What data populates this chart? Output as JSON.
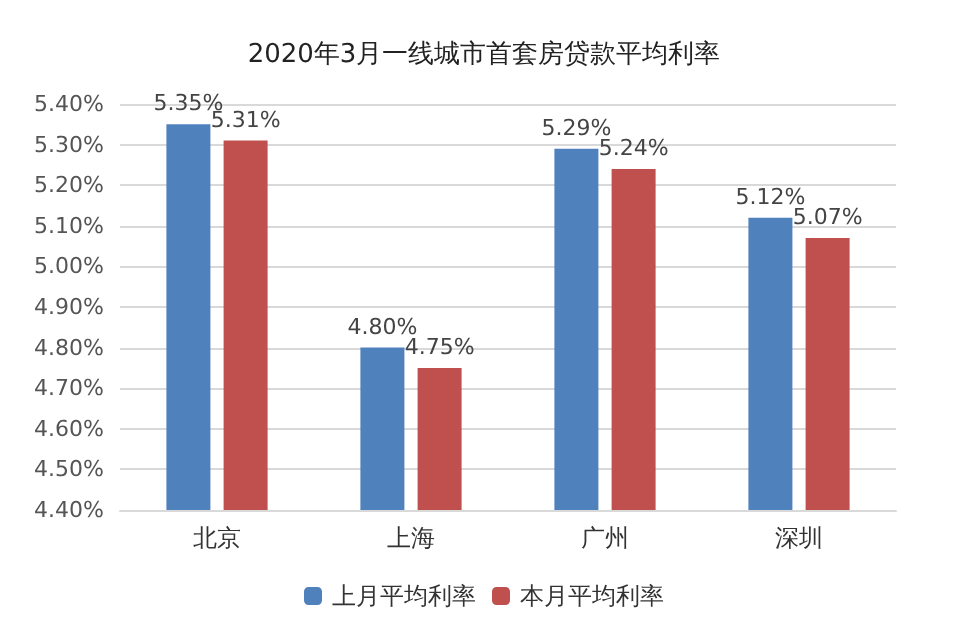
{
  "chart_data": {
    "type": "bar",
    "title": "2020年3月一线城市首套房贷款平均利率",
    "categories": [
      "北京",
      "上海",
      "广州",
      "深圳"
    ],
    "series": [
      {
        "name": "上月平均利率",
        "color": "#4f81bd",
        "values": [
          5.35,
          4.8,
          5.29,
          5.12
        ],
        "value_labels": [
          "5.35%",
          "4.80%",
          "5.29%",
          "5.12%"
        ]
      },
      {
        "name": "本月平均利率",
        "color": "#c0504d",
        "values": [
          5.31,
          4.75,
          5.24,
          5.07
        ],
        "value_labels": [
          "5.31%",
          "4.75%",
          "5.24%",
          "5.07%"
        ]
      }
    ],
    "ylim": [
      4.4,
      5.4
    ],
    "yticks": [
      {
        "value": 4.4,
        "label": "4.40%"
      },
      {
        "value": 4.5,
        "label": "4.50%"
      },
      {
        "value": 4.6,
        "label": "4.60%"
      },
      {
        "value": 4.7,
        "label": "4.70%"
      },
      {
        "value": 4.8,
        "label": "4.80%"
      },
      {
        "value": 4.9,
        "label": "4.90%"
      },
      {
        "value": 5.0,
        "label": "5.00%"
      },
      {
        "value": 5.1,
        "label": "5.10%"
      },
      {
        "value": 5.2,
        "label": "5.20%"
      },
      {
        "value": 5.3,
        "label": "5.30%"
      },
      {
        "value": 5.4,
        "label": "5.40%"
      }
    ],
    "grid": "y",
    "legend": "bottom"
  }
}
